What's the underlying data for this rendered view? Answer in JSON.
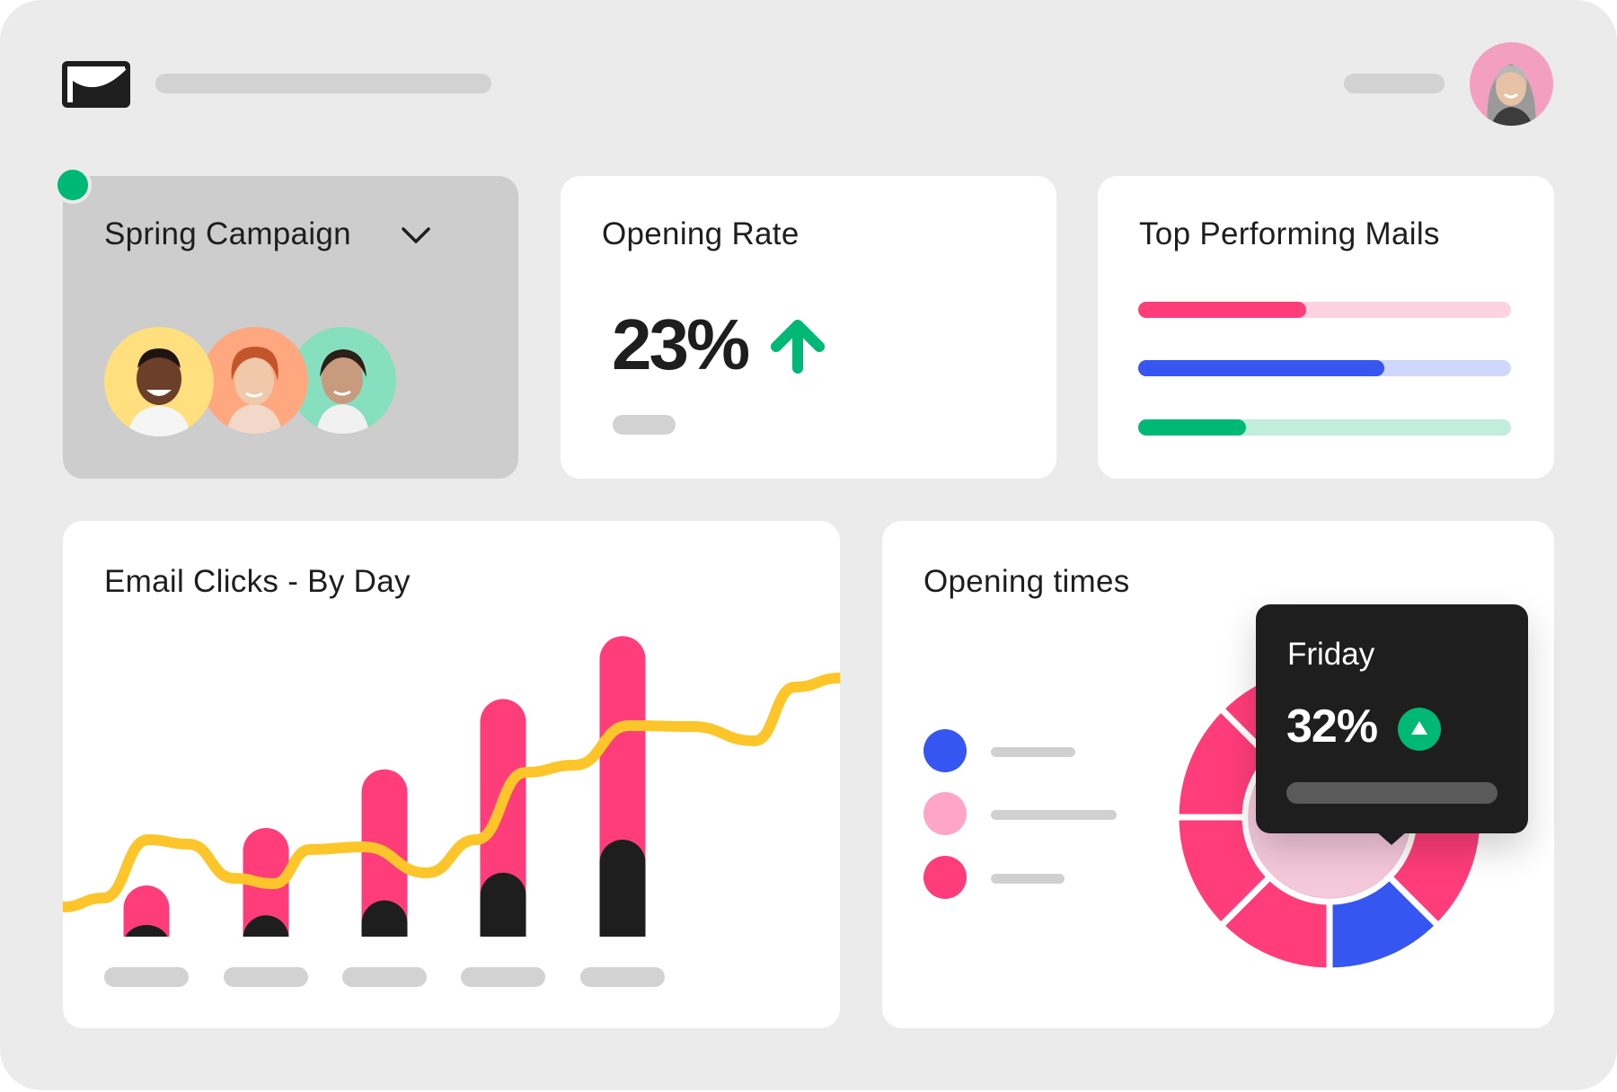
{
  "campaign": {
    "name": "Spring Campaign",
    "status_color": "#00b876"
  },
  "opening_rate": {
    "title": "Opening Rate",
    "value": "23%",
    "trend": "up"
  },
  "top_mails": {
    "title": "Top Performing Mails",
    "bars": [
      {
        "progress": 0.45,
        "fill": "#ff3d7a",
        "track": "#ffd2e0"
      },
      {
        "progress": 0.66,
        "fill": "#3556f0",
        "track": "#cfd8fa"
      },
      {
        "progress": 0.29,
        "fill": "#00b876",
        "track": "#c1eddd"
      }
    ]
  },
  "email_clicks": {
    "title": "Email Clicks - By Day"
  },
  "opening_times": {
    "title": "Opening times",
    "legend_colors": [
      "#3556f0",
      "#ffa5c8",
      "#ff3d7a"
    ],
    "tooltip": {
      "label": "Friday",
      "value": "32%",
      "trend": "up"
    }
  },
  "chart_data": [
    {
      "type": "bar",
      "series": [
        {
          "values": [
            48,
            102,
            157,
            223,
            282
          ],
          "color": "#ff3d7a"
        },
        {
          "values": [
            11,
            20,
            34,
            60,
            91
          ],
          "color": "#1e1e1e"
        }
      ]
    },
    {
      "type": "pie",
      "slices": [
        {
          "value": 12.5,
          "color": "#ff3d7a"
        },
        {
          "value": 12.5,
          "color": "#ff3d7a"
        },
        {
          "value": 12.5,
          "color": "#ff3d7a"
        },
        {
          "value": 12.5,
          "color": "#3556f0"
        },
        {
          "value": 12.5,
          "color": "#ff3d7a"
        },
        {
          "value": 12.5,
          "color": "#ff3d7a"
        },
        {
          "value": 12.5,
          "color": "#ff3d7a"
        },
        {
          "value": 12.5,
          "color": "#ff3d7a"
        }
      ]
    }
  ],
  "colors": {
    "accent_pink": "#ff3d7a",
    "accent_blue": "#3556f0",
    "accent_green": "#00b876",
    "accent_yellow": "#fcc62b",
    "dark": "#1e1e1e"
  }
}
